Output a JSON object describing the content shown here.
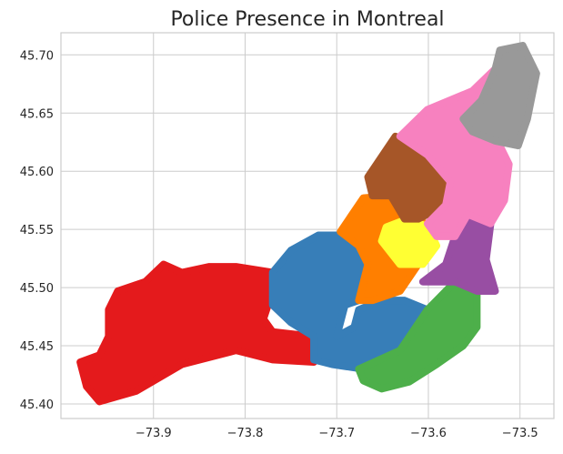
{
  "chart_data": {
    "type": "polygon",
    "title": "Police Presence in Montreal",
    "xlim": [
      -74.001,
      -73.463
    ],
    "ylim": [
      45.3875,
      45.719
    ],
    "grid": true,
    "xticks": [
      {
        "value": -73.9,
        "label": "−73.9"
      },
      {
        "value": -73.8,
        "label": "−73.8"
      },
      {
        "value": -73.7,
        "label": "−73.7"
      },
      {
        "value": -73.6,
        "label": "−73.6"
      },
      {
        "value": -73.5,
        "label": "−73.5"
      }
    ],
    "yticks": [
      {
        "value": 45.4,
        "label": "45.40"
      },
      45.45,
      {
        "value": 45.5,
        "label": "45.50"
      },
      45.55,
      {
        "value": 45.6,
        "label": "45.60"
      },
      45.65,
      {
        "value": 45.7,
        "label": "45.70"
      }
    ],
    "series": [
      {
        "color": "#e41a1c",
        "x": [
          -73.98,
          -73.973,
          -73.959,
          -73.919,
          -73.869,
          -73.81,
          -73.77,
          -73.725,
          -73.725,
          -73.77,
          -73.78,
          -73.77,
          -73.77,
          -73.81,
          -73.839,
          -73.869,
          -73.889,
          -73.909,
          -73.939,
          -73.949,
          -73.949,
          -73.959
        ],
        "y": [
          45.436,
          45.415,
          45.402,
          45.411,
          45.434,
          45.446,
          45.438,
          45.436,
          45.458,
          45.462,
          45.473,
          45.497,
          45.513,
          45.518,
          45.518,
          45.513,
          45.52,
          45.505,
          45.497,
          45.481,
          45.458,
          45.442
        ]
      },
      {
        "color": "#377eb8",
        "x": [
          -73.77,
          -73.75,
          -73.72,
          -73.696,
          -73.676,
          -73.666,
          -73.676,
          -73.691,
          -73.7,
          -73.681,
          -73.676,
          -73.651,
          -73.626,
          -73.601,
          -73.601,
          -73.631,
          -73.671,
          -73.705,
          -73.725,
          -73.725,
          -73.75,
          -73.77
        ],
        "y": [
          45.513,
          45.532,
          45.545,
          45.545,
          45.536,
          45.52,
          45.489,
          45.485,
          45.458,
          45.466,
          45.481,
          45.489,
          45.489,
          45.481,
          45.458,
          45.446,
          45.43,
          45.434,
          45.438,
          45.458,
          45.47,
          45.485
        ]
      },
      {
        "color": "#ff7f00",
        "x": [
          -73.696,
          -73.671,
          -73.641,
          -73.626,
          -73.601,
          -73.611,
          -73.631,
          -73.661,
          -73.676,
          -73.666,
          -73.676
        ],
        "y": [
          45.548,
          45.577,
          45.579,
          45.559,
          45.555,
          45.52,
          45.497,
          45.489,
          45.489,
          45.52,
          45.536
        ]
      },
      {
        "color": "#ffff33",
        "x": [
          -73.651,
          -73.646,
          -73.626,
          -73.601,
          -73.591,
          -73.606,
          -73.631
        ],
        "y": [
          45.54,
          45.552,
          45.558,
          45.553,
          45.536,
          45.52,
          45.52
        ]
      },
      {
        "color": "#4daf4a",
        "x": [
          -73.676,
          -73.631,
          -73.601,
          -73.571,
          -73.547,
          -73.547,
          -73.562,
          -73.591,
          -73.621,
          -73.651,
          -73.671
        ],
        "y": [
          45.43,
          45.446,
          45.481,
          45.505,
          45.497,
          45.466,
          45.45,
          45.434,
          45.419,
          45.413,
          45.42
        ]
      },
      {
        "color": "#a65628",
        "x": [
          -73.666,
          -73.636,
          -73.601,
          -73.576,
          -73.581,
          -73.611,
          -73.626,
          -73.641,
          -73.661
        ],
        "y": [
          45.595,
          45.63,
          45.614,
          45.591,
          45.571,
          45.559,
          45.559,
          45.579,
          45.579
        ]
      },
      {
        "color": "#984ea3",
        "x": [
          -73.606,
          -73.581,
          -73.571,
          -73.557,
          -73.532,
          -73.537,
          -73.527,
          -73.547,
          -73.571
        ],
        "y": [
          45.505,
          45.52,
          45.544,
          45.563,
          45.555,
          45.524,
          45.497,
          45.497,
          45.505
        ]
      },
      {
        "color": "#f781bf",
        "x": [
          -73.631,
          -73.601,
          -73.552,
          -73.527,
          -73.512,
          -73.532,
          -73.512,
          -73.517,
          -73.532,
          -73.557,
          -73.571,
          -73.591,
          -73.601,
          -73.581,
          -73.576,
          -73.601
        ],
        "y": [
          45.63,
          45.653,
          45.669,
          45.688,
          45.669,
          45.638,
          45.606,
          45.575,
          45.555,
          45.563,
          45.544,
          45.544,
          45.555,
          45.571,
          45.591,
          45.614
        ]
      },
      {
        "color": "#999999",
        "x": [
          -73.527,
          -73.522,
          -73.497,
          -73.482,
          -73.492,
          -73.502,
          -73.527,
          -73.552,
          -73.562,
          -73.542
        ],
        "y": [
          45.688,
          45.704,
          45.708,
          45.684,
          45.645,
          45.622,
          45.626,
          45.634,
          45.645,
          45.661
        ]
      }
    ]
  }
}
